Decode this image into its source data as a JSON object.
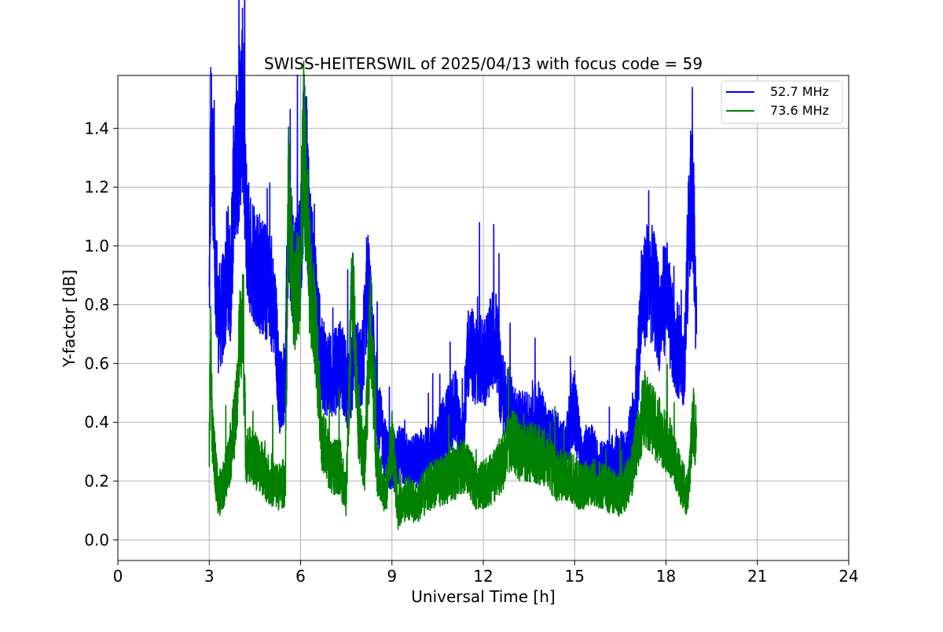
{
  "chart_data": {
    "type": "line",
    "title": "SWISS-HEITERSWIL of 2025/04/13 with focus code = 59",
    "xlabel": "Universal Time [h]",
    "ylabel": "Y-factor [dB]",
    "xlim": [
      0,
      24
    ],
    "ylim": [
      -0.07,
      1.58
    ],
    "x_ticks": [
      0,
      3,
      6,
      9,
      12,
      15,
      18,
      21,
      24
    ],
    "y_ticks": [
      0.0,
      0.2,
      0.4,
      0.6,
      0.8,
      1.0,
      1.2,
      1.4
    ],
    "y_tick_labels": [
      "0.0",
      "0.2",
      "0.4",
      "0.6",
      "0.8",
      "1.0",
      "1.2",
      "1.4"
    ],
    "grid": true,
    "legend_position": "top-right",
    "series": [
      {
        "name": "52.7 MHz",
        "color": "#0000ff",
        "points": [
          [
            3.0,
            0.8
          ],
          [
            3.05,
            1.36
          ],
          [
            3.1,
            1.25
          ],
          [
            3.2,
            0.95
          ],
          [
            3.3,
            0.75
          ],
          [
            3.5,
            0.8
          ],
          [
            3.6,
            0.95
          ],
          [
            3.7,
            0.85
          ],
          [
            3.8,
            1.2
          ],
          [
            3.9,
            1.25
          ],
          [
            4.0,
            1.4
          ],
          [
            4.1,
            1.5
          ],
          [
            4.2,
            1.1
          ],
          [
            4.3,
            1.0
          ],
          [
            4.5,
            0.95
          ],
          [
            4.7,
            0.9
          ],
          [
            5.0,
            0.85
          ],
          [
            5.2,
            0.7
          ],
          [
            5.3,
            0.5
          ],
          [
            5.5,
            0.55
          ],
          [
            5.6,
            1.1
          ],
          [
            5.8,
            0.9
          ],
          [
            6.0,
            1.0
          ],
          [
            6.1,
            1.3
          ],
          [
            6.2,
            1.25
          ],
          [
            6.3,
            1.0
          ],
          [
            6.5,
            0.8
          ],
          [
            6.7,
            0.6
          ],
          [
            7.0,
            0.55
          ],
          [
            7.3,
            0.6
          ],
          [
            7.6,
            0.5
          ],
          [
            7.8,
            0.65
          ],
          [
            8.0,
            0.55
          ],
          [
            8.2,
            0.9
          ],
          [
            8.4,
            0.6
          ],
          [
            8.6,
            0.4
          ],
          [
            8.8,
            0.3
          ],
          [
            9.0,
            0.25
          ],
          [
            9.3,
            0.3
          ],
          [
            9.6,
            0.25
          ],
          [
            10.0,
            0.28
          ],
          [
            10.4,
            0.3
          ],
          [
            10.8,
            0.4
          ],
          [
            11.1,
            0.45
          ],
          [
            11.3,
            0.3
          ],
          [
            11.5,
            0.65
          ],
          [
            11.8,
            0.6
          ],
          [
            12.1,
            0.62
          ],
          [
            12.4,
            0.7
          ],
          [
            12.6,
            0.5
          ],
          [
            12.8,
            0.45
          ],
          [
            13.1,
            0.4
          ],
          [
            13.5,
            0.38
          ],
          [
            13.8,
            0.42
          ],
          [
            14.1,
            0.35
          ],
          [
            14.4,
            0.33
          ],
          [
            14.7,
            0.3
          ],
          [
            15.0,
            0.45
          ],
          [
            15.2,
            0.28
          ],
          [
            15.5,
            0.3
          ],
          [
            15.8,
            0.25
          ],
          [
            16.1,
            0.25
          ],
          [
            16.4,
            0.28
          ],
          [
            16.7,
            0.27
          ],
          [
            17.0,
            0.45
          ],
          [
            17.2,
            0.8
          ],
          [
            17.4,
            0.9
          ],
          [
            17.6,
            0.85
          ],
          [
            17.8,
            0.75
          ],
          [
            18.0,
            0.85
          ],
          [
            18.2,
            0.7
          ],
          [
            18.4,
            0.65
          ],
          [
            18.6,
            0.6
          ],
          [
            18.8,
            1.2
          ],
          [
            18.9,
            1.1
          ],
          [
            19.0,
            0.7
          ]
        ]
      },
      {
        "name": "73.6 MHz",
        "color": "#008000",
        "points": [
          [
            3.0,
            0.3
          ],
          [
            3.05,
            0.7
          ],
          [
            3.1,
            0.35
          ],
          [
            3.3,
            0.15
          ],
          [
            3.5,
            0.2
          ],
          [
            3.7,
            0.3
          ],
          [
            3.9,
            0.45
          ],
          [
            4.0,
            0.7
          ],
          [
            4.1,
            0.75
          ],
          [
            4.2,
            0.3
          ],
          [
            4.4,
            0.28
          ],
          [
            4.7,
            0.25
          ],
          [
            5.0,
            0.2
          ],
          [
            5.3,
            0.18
          ],
          [
            5.5,
            0.2
          ],
          [
            5.6,
            1.2
          ],
          [
            5.8,
            0.8
          ],
          [
            6.0,
            0.95
          ],
          [
            6.1,
            1.35
          ],
          [
            6.3,
            0.9
          ],
          [
            6.5,
            0.7
          ],
          [
            6.7,
            0.35
          ],
          [
            7.0,
            0.25
          ],
          [
            7.3,
            0.25
          ],
          [
            7.5,
            0.15
          ],
          [
            7.7,
            0.9
          ],
          [
            7.9,
            0.4
          ],
          [
            8.1,
            0.25
          ],
          [
            8.3,
            0.75
          ],
          [
            8.5,
            0.25
          ],
          [
            8.8,
            0.15
          ],
          [
            9.0,
            0.35
          ],
          [
            9.2,
            0.1
          ],
          [
            9.5,
            0.15
          ],
          [
            9.8,
            0.12
          ],
          [
            10.2,
            0.18
          ],
          [
            10.6,
            0.2
          ],
          [
            11.0,
            0.22
          ],
          [
            11.4,
            0.25
          ],
          [
            11.8,
            0.18
          ],
          [
            12.2,
            0.2
          ],
          [
            12.6,
            0.25
          ],
          [
            12.9,
            0.35
          ],
          [
            13.2,
            0.3
          ],
          [
            13.6,
            0.3
          ],
          [
            14.0,
            0.28
          ],
          [
            14.4,
            0.22
          ],
          [
            14.8,
            0.22
          ],
          [
            15.2,
            0.18
          ],
          [
            15.6,
            0.2
          ],
          [
            16.0,
            0.18
          ],
          [
            16.4,
            0.15
          ],
          [
            16.8,
            0.2
          ],
          [
            17.0,
            0.3
          ],
          [
            17.3,
            0.45
          ],
          [
            17.6,
            0.4
          ],
          [
            17.9,
            0.35
          ],
          [
            18.2,
            0.3
          ],
          [
            18.5,
            0.2
          ],
          [
            18.7,
            0.15
          ],
          [
            18.9,
            0.4
          ],
          [
            19.0,
            0.35
          ]
        ]
      }
    ]
  }
}
